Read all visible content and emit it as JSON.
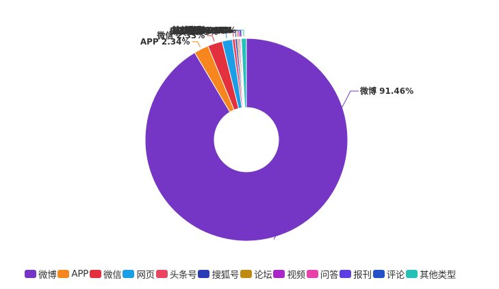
{
  "chart_data": {
    "type": "pie",
    "variant": "donut",
    "legend_position": "bottom",
    "slices": [
      {
        "name": "微博",
        "value": 91.46,
        "label": "微博 91.46%",
        "color": "#7535c5"
      },
      {
        "name": "APP",
        "value": 2.34,
        "label": "APP 2.34%",
        "color": "#f7861e"
      },
      {
        "name": "微信",
        "value": 2.33,
        "label": "微信 2.33%",
        "color": "#e2303f"
      },
      {
        "name": "网页",
        "value": 1.63,
        "label": "网页 1.63%",
        "color": "#1c9ee6"
      },
      {
        "name": "头条号",
        "value": 0.46,
        "label": "头条号 0.46%",
        "color": "#e74560"
      },
      {
        "name": "搜狐号",
        "value": 0.31,
        "label": "搜狐号 0.31%",
        "color": "#2a3bb5"
      },
      {
        "name": "论坛",
        "value": 0.23,
        "label": "论坛 0.23%",
        "color": "#c08a12"
      },
      {
        "name": "视频",
        "value": 0.2,
        "label": "视频 0.2%",
        "color": "#a926c8"
      },
      {
        "name": "问答",
        "value": 0.16,
        "label": "问答 0.16%",
        "color": "#e842aa"
      },
      {
        "name": "报刊",
        "value": 0.05,
        "label": "报刊 0.05%",
        "color": "#5b3fe0"
      },
      {
        "name": "评论",
        "value": 0.02,
        "label": "评论 0.02%",
        "color": "#2450c8"
      },
      {
        "name": "其他类型",
        "value": 0.81,
        "label": "其他类型 0.81%",
        "color": "#25c0b8"
      }
    ]
  },
  "legend": {
    "items": [
      "微博",
      "APP",
      "微信",
      "网页",
      "头条号",
      "搜狐号",
      "论坛",
      "视频",
      "问答",
      "报刊",
      "评论",
      "其他类型"
    ]
  }
}
